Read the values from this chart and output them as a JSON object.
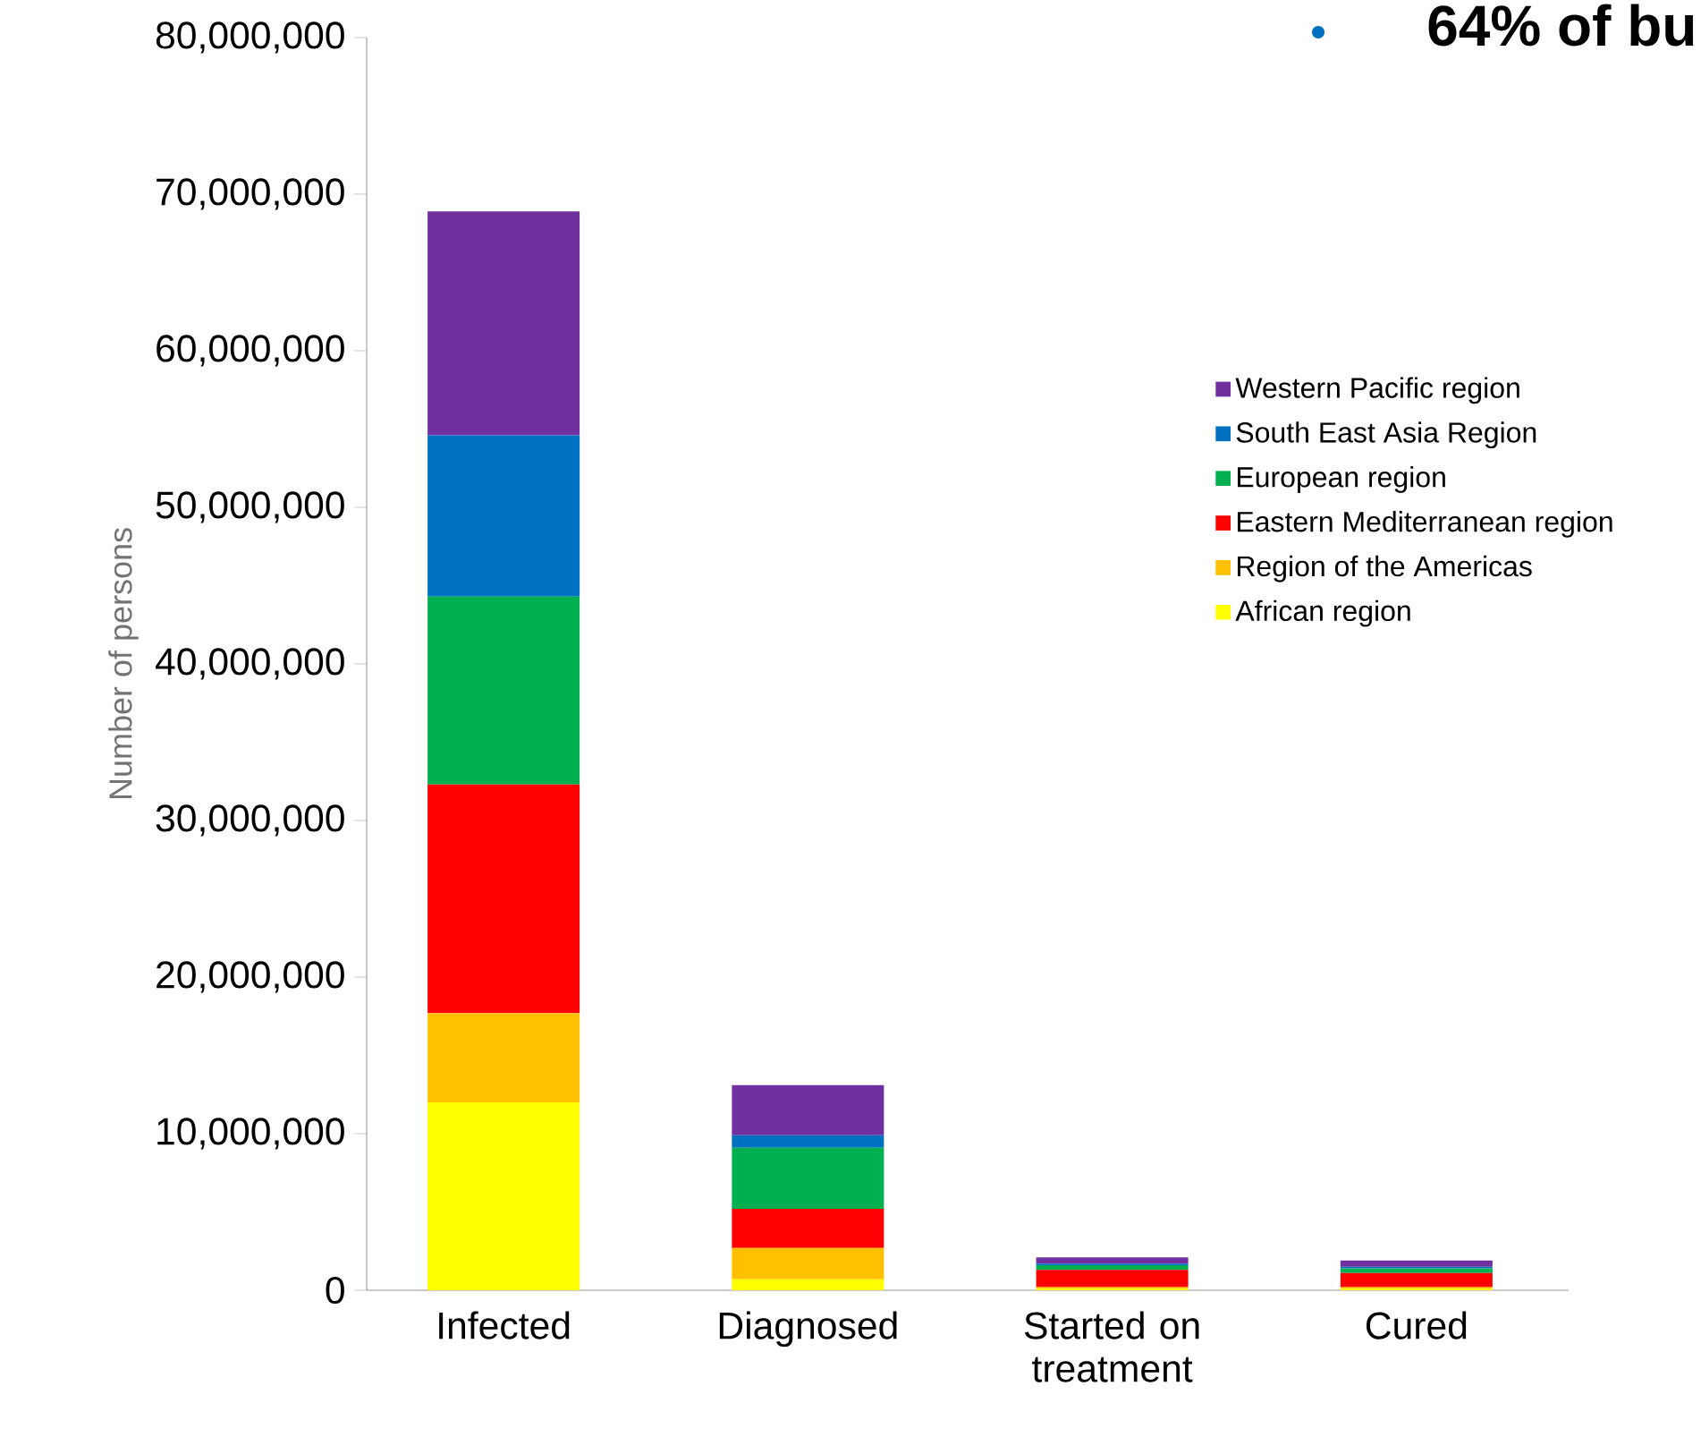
{
  "chart_data": {
    "type": "bar",
    "stacked": true,
    "ylabel": "Number of persons",
    "categories": [
      "Infected",
      "Diagnosed",
      "Started on treatment",
      "Cured"
    ],
    "series": [
      {
        "name": "African region",
        "color": "#ffff00",
        "values": [
          12000000,
          700000,
          100000,
          100000
        ]
      },
      {
        "name": "Region of the Americas",
        "color": "#ffc000",
        "values": [
          5700000,
          2000000,
          100000,
          100000
        ]
      },
      {
        "name": "Eastern Mediterranean region",
        "color": "#ff0000",
        "values": [
          14600000,
          2500000,
          1100000,
          900000
        ]
      },
      {
        "name": "European region",
        "color": "#00b050",
        "values": [
          12000000,
          3900000,
          300000,
          300000
        ]
      },
      {
        "name": "South East Asia Region",
        "color": "#0070c0",
        "values": [
          10300000,
          800000,
          100000,
          100000
        ]
      },
      {
        "name": "Western Pacific region",
        "color": "#7030a0",
        "values": [
          14300000,
          3200000,
          400000,
          400000
        ]
      }
    ],
    "ylim": [
      0,
      80000000
    ],
    "yticks": [
      {
        "value": 0,
        "label": "0"
      },
      {
        "value": 10000000,
        "label": "10,000,000"
      },
      {
        "value": 20000000,
        "label": "20,000,000"
      },
      {
        "value": 30000000,
        "label": "30,000,000"
      },
      {
        "value": 40000000,
        "label": "40,000,000"
      },
      {
        "value": 50000000,
        "label": "50,000,000"
      },
      {
        "value": 60000000,
        "label": "60,000,000"
      },
      {
        "value": 70000000,
        "label": "70,000,000"
      },
      {
        "value": 80000000,
        "label": "80,000,000"
      }
    ],
    "legend": "right",
    "grid": false,
    "annotations": [
      "64% of bu"
    ]
  }
}
